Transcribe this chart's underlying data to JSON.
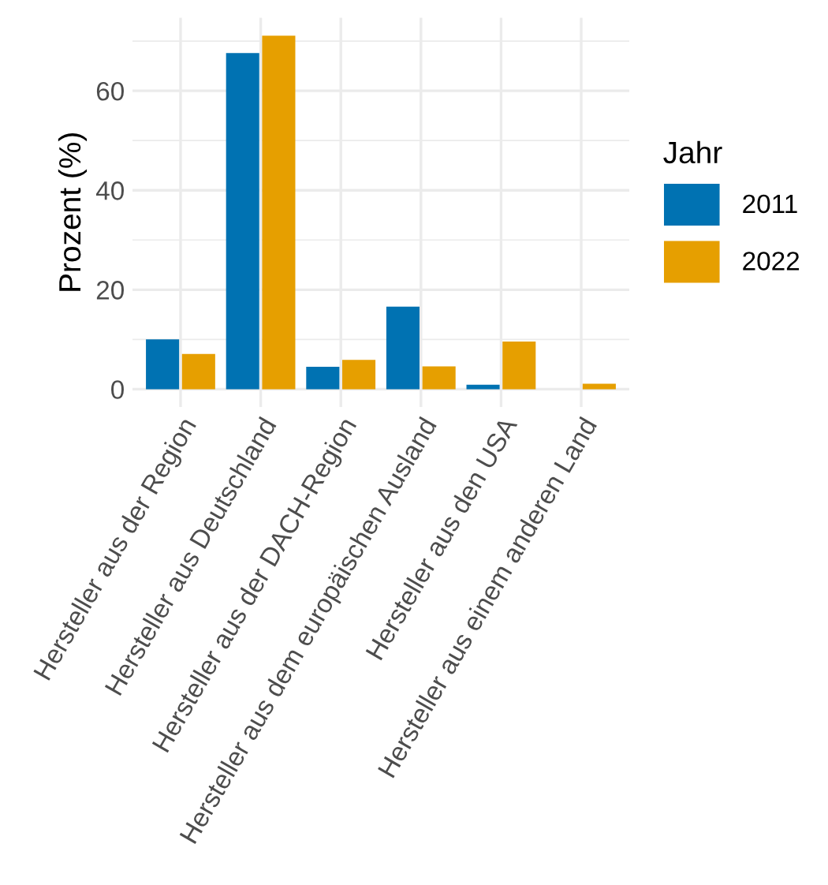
{
  "chart_data": {
    "type": "bar",
    "ylabel": "Prozent (%)",
    "legend_title": "Jahr",
    "categories": [
      "Hersteller aus der Region",
      "Hersteller aus Deutschland",
      "Hersteller aus der DACH-Region",
      "Hersteller aus dem europäischen Ausland",
      "Hersteller aus den USA",
      "Hersteller aus einem anderen Land"
    ],
    "series": [
      {
        "name": "2011",
        "color": "#0072b2",
        "values": [
          10.0,
          67.6,
          4.5,
          16.6,
          0.9,
          null
        ]
      },
      {
        "name": "2022",
        "color": "#e69f00",
        "values": [
          7.1,
          71.1,
          5.9,
          4.6,
          9.6,
          1.1
        ]
      }
    ],
    "ylim": [
      -3.6,
      74.7
    ],
    "yticks": [
      0,
      20,
      40,
      60
    ],
    "grid": true,
    "legend": "right"
  }
}
